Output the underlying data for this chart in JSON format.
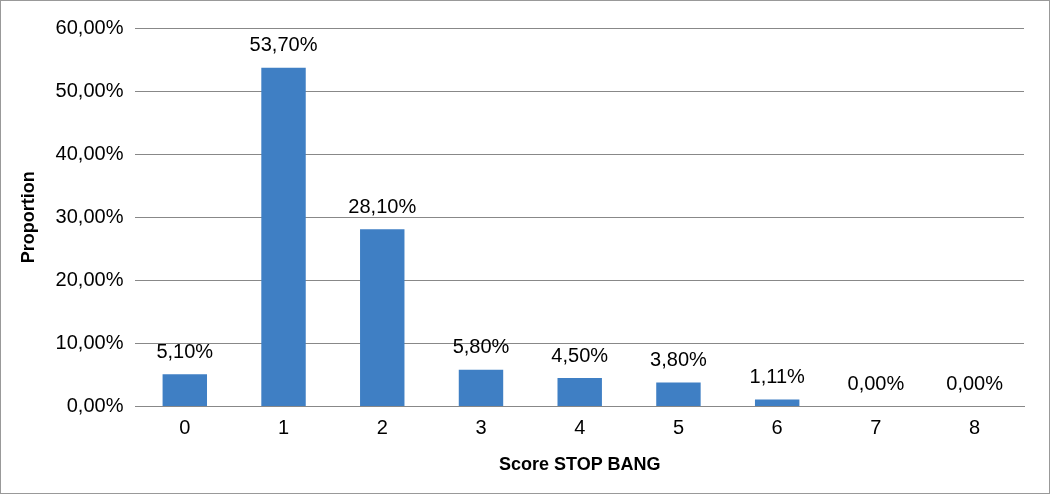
{
  "chart_data": {
    "type": "bar",
    "xlabel": "Score STOP BANG",
    "ylabel": "Proportion",
    "categories": [
      "0",
      "1",
      "2",
      "3",
      "4",
      "5",
      "6",
      "7",
      "8"
    ],
    "values": [
      5.1,
      53.7,
      28.1,
      5.8,
      4.5,
      3.8,
      1.11,
      0,
      0
    ],
    "value_labels": [
      "5,10%",
      "53,70%",
      "28,10%",
      "5,80%",
      "4,50%",
      "3,80%",
      "1,11%",
      "0,00%",
      "0,00%"
    ],
    "color": "#3f7fc4",
    "ylim": [
      0,
      60
    ],
    "yticks": [
      {
        "value": 0,
        "label": "0,00%"
      },
      {
        "value": 10,
        "label": "10,00%"
      },
      {
        "value": 20,
        "label": "20,00%"
      },
      {
        "value": 30,
        "label": "30,00%"
      },
      {
        "value": 40,
        "label": "40,00%"
      },
      {
        "value": 50,
        "label": "50,00%"
      },
      {
        "value": 60,
        "label": "60,00%"
      }
    ],
    "grid": "y",
    "legend": false
  }
}
